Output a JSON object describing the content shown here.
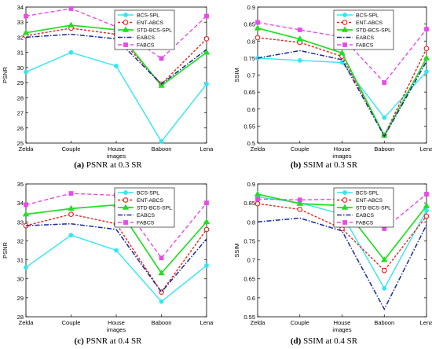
{
  "captions": [
    {
      "tag": "(a)",
      "text": "PSNR at 0.3 SR"
    },
    {
      "tag": "(b)",
      "text": "SSIM at 0.3 SR"
    },
    {
      "tag": "(c)",
      "text": "PSNR at 0.4 SR"
    },
    {
      "tag": "(d)",
      "text": "SSIM at 0.4 SR"
    }
  ],
  "colors": {
    "BCS-SPL": "#33e6f0",
    "ENT-ABCS": "#e8211b",
    "STD-BCS-SPL": "#22dd22",
    "EABCS": "#1a2a9e",
    "FABCS": "#e84ae8"
  },
  "chart_data": [
    {
      "type": "line",
      "title": "",
      "xlabel": "images",
      "ylabel": "PSNR",
      "categories": [
        "Zelda",
        "Couple",
        "House",
        "Baboon",
        "Lena"
      ],
      "ylim": [
        25,
        34
      ],
      "yticks": [
        "25",
        "26",
        "27",
        "28",
        "29",
        "30",
        "31",
        "32",
        "33",
        "34"
      ],
      "legend": "top-right",
      "series": [
        {
          "name": "BCS-SPL",
          "values": [
            29.7,
            31.0,
            30.1,
            25.1,
            28.9
          ]
        },
        {
          "name": "ENT-ABCS",
          "values": [
            32.1,
            32.6,
            32.2,
            28.9,
            31.9
          ]
        },
        {
          "name": "STD-BCS-SPL",
          "values": [
            32.3,
            32.8,
            32.5,
            28.8,
            31.0
          ]
        },
        {
          "name": "EABCS",
          "values": [
            32.0,
            32.2,
            31.9,
            28.9,
            31.2
          ]
        },
        {
          "name": "FABCS",
          "values": [
            33.4,
            33.9,
            32.7,
            30.6,
            33.4
          ]
        }
      ]
    },
    {
      "type": "line",
      "title": "",
      "xlabel": "images",
      "ylabel": "SSIM",
      "categories": [
        "Zelda",
        "Couple",
        "House",
        "Baboon",
        "Lena"
      ],
      "ylim": [
        0.5,
        0.9
      ],
      "yticks": [
        "0.5",
        "0.55",
        "0.6",
        "0.65",
        "0.7",
        "0.75",
        "0.8",
        "0.85",
        "0.9"
      ],
      "legend": "top-right",
      "series": [
        {
          "name": "BCS-SPL",
          "values": [
            0.75,
            0.743,
            0.737,
            0.575,
            0.71
          ]
        },
        {
          "name": "ENT-ABCS",
          "values": [
            0.81,
            0.796,
            0.755,
            0.523,
            0.778
          ]
        },
        {
          "name": "STD-BCS-SPL",
          "values": [
            0.838,
            0.806,
            0.765,
            0.522,
            0.75
          ]
        },
        {
          "name": "EABCS",
          "values": [
            0.75,
            0.772,
            0.745,
            0.52,
            0.74
          ]
        },
        {
          "name": "FABCS",
          "values": [
            0.855,
            0.833,
            0.812,
            0.678,
            0.835
          ]
        }
      ]
    },
    {
      "type": "line",
      "title": "",
      "xlabel": "images",
      "ylabel": "PSNR",
      "categories": [
        "Zelda",
        "Couple",
        "House",
        "Baboon",
        "Lena"
      ],
      "ylim": [
        28,
        35
      ],
      "yticks": [
        "28",
        "29",
        "30",
        "31",
        "32",
        "33",
        "34",
        "35"
      ],
      "legend": "top-right",
      "series": [
        {
          "name": "BCS-SPL",
          "values": [
            30.6,
            32.3,
            31.5,
            28.8,
            30.7
          ]
        },
        {
          "name": "ENT-ABCS",
          "values": [
            32.8,
            33.4,
            32.9,
            29.3,
            32.6
          ]
        },
        {
          "name": "STD-BCS-SPL",
          "values": [
            33.4,
            33.7,
            33.9,
            30.3,
            33.0
          ]
        },
        {
          "name": "EABCS",
          "values": [
            32.8,
            32.9,
            32.6,
            29.3,
            32.1
          ]
        },
        {
          "name": "FABCS",
          "values": [
            33.9,
            34.5,
            34.4,
            31.1,
            34.0
          ]
        }
      ]
    },
    {
      "type": "line",
      "title": "",
      "xlabel": "images",
      "ylabel": "SSIM",
      "categories": [
        "Zelda",
        "Couple",
        "House",
        "Baboon",
        "Lena"
      ],
      "ylim": [
        0.55,
        0.9
      ],
      "yticks": [
        "0.55",
        "0.6",
        "0.65",
        "0.7",
        "0.75",
        "0.8",
        "0.85",
        "0.9"
      ],
      "legend": "top-right",
      "series": [
        {
          "name": "BCS-SPL",
          "values": [
            0.866,
            0.85,
            0.82,
            0.625,
            0.83
          ]
        },
        {
          "name": "ENT-ABCS",
          "values": [
            0.848,
            0.833,
            0.782,
            0.672,
            0.815
          ]
        },
        {
          "name": "STD-BCS-SPL",
          "values": [
            0.873,
            0.848,
            0.843,
            0.7,
            0.842
          ]
        },
        {
          "name": "EABCS",
          "values": [
            0.8,
            0.81,
            0.776,
            0.57,
            0.792
          ]
        },
        {
          "name": "FABCS",
          "values": [
            0.86,
            0.858,
            0.86,
            0.782,
            0.873
          ]
        }
      ]
    }
  ]
}
